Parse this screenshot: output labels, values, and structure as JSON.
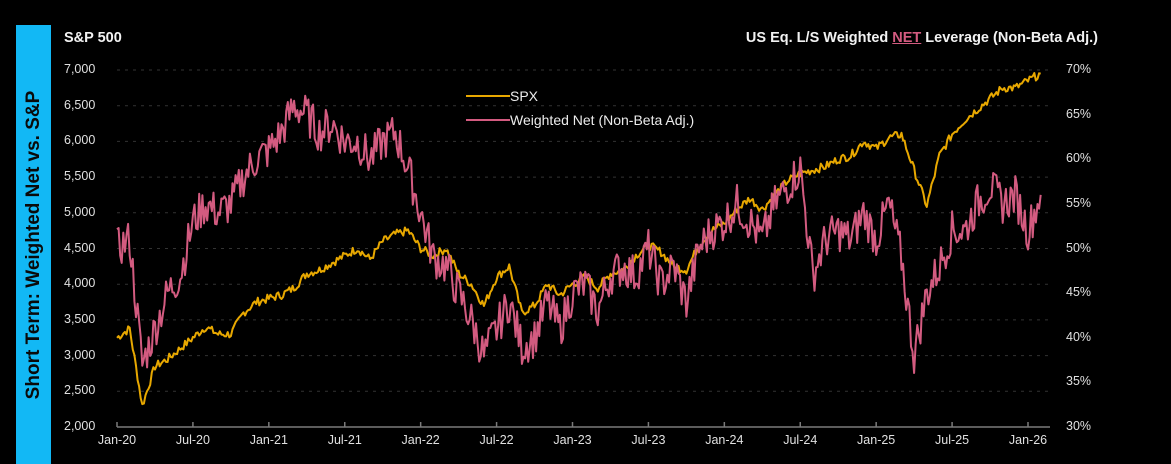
{
  "side_label": "Short Term: Weighted Net vs. S&P",
  "left_title": "S&P 500",
  "right_title": {
    "prefix": "US Eq. L/S Weighted ",
    "highlight": "NET",
    "suffix": " Leverage (Non-Beta Adj.)"
  },
  "colors": {
    "spx": "#e8a800",
    "net": "#d35b80",
    "banner": "#12b8f5"
  },
  "chart_data": {
    "type": "line",
    "title": "US Eq. L/S Weighted NET Leverage (Non-Beta Adj.)",
    "left_axis": {
      "label": "S&P 500",
      "ylim": [
        2000,
        7000
      ],
      "ticks": [
        "7,000",
        "6,500",
        "6,000",
        "5,500",
        "5,000",
        "4,500",
        "4,000",
        "3,500",
        "3,000",
        "2,500",
        "2,000"
      ]
    },
    "right_axis": {
      "ylim": [
        30,
        70
      ],
      "ticks": [
        "70%",
        "65%",
        "60%",
        "55%",
        "50%",
        "45%",
        "40%",
        "35%",
        "30%"
      ]
    },
    "x_ticks": [
      "Jan-20",
      "Jul-20",
      "Jan-21",
      "Jul-21",
      "Jan-22",
      "Jul-22",
      "Jan-23",
      "Jul-23",
      "Jan-24",
      "Jul-24",
      "Jan-25",
      "Jul-25",
      "Jan-26"
    ],
    "x_months_from_jan20": [
      0,
      1,
      2,
      3,
      4,
      5,
      6,
      7,
      8,
      9,
      10,
      11,
      12,
      13,
      14,
      15,
      16,
      17,
      18,
      19,
      20,
      21,
      22,
      23,
      24,
      25,
      26,
      27,
      28,
      29,
      30,
      31,
      32,
      33,
      34,
      35,
      36,
      37,
      38,
      39,
      40,
      41,
      42,
      43,
      44,
      45,
      46,
      47,
      48,
      49,
      50,
      51,
      52,
      53,
      54,
      55,
      56,
      57,
      58,
      59,
      60,
      61,
      62,
      63,
      64,
      65,
      66,
      67,
      68,
      69,
      70,
      71,
      72,
      73
    ],
    "grid": true,
    "legend_position": "top-center",
    "series": [
      {
        "name": "SPX",
        "axis": "left",
        "values": [
          3250,
          3380,
          2300,
          2850,
          2950,
          3100,
          3250,
          3400,
          3300,
          3300,
          3600,
          3750,
          3800,
          3850,
          3950,
          4150,
          4200,
          4300,
          4400,
          4500,
          4350,
          4600,
          4700,
          4750,
          4500,
          4400,
          4500,
          4150,
          4000,
          3700,
          4100,
          4250,
          3600,
          3700,
          4000,
          3850,
          4000,
          4100,
          3950,
          4150,
          4200,
          4400,
          4550,
          4450,
          4250,
          4200,
          4550,
          4750,
          4850,
          5050,
          5200,
          5050,
          5250,
          5450,
          5550,
          5600,
          5650,
          5750,
          5800,
          6000,
          5900,
          6050,
          6100,
          5600,
          5100,
          5800,
          6100,
          6300,
          6450,
          6600,
          6750,
          6750,
          6850,
          6950
        ]
      },
      {
        "name": "Weighted Net (Non-Beta Adj.)",
        "axis": "right",
        "values": [
          50,
          51,
          37,
          41,
          45,
          47,
          53,
          55,
          54,
          55,
          58,
          60,
          61,
          63,
          66,
          65,
          63,
          64,
          62,
          62,
          60,
          62,
          63,
          59,
          54,
          49,
          48,
          45,
          42,
          38,
          41,
          44,
          39,
          40,
          44,
          41,
          45,
          46,
          43,
          47,
          48,
          47,
          50,
          46,
          48,
          44,
          50,
          52,
          53,
          55,
          53,
          51,
          55,
          57,
          59,
          47,
          51,
          52,
          51,
          54,
          51,
          55,
          49,
          38,
          45,
          48,
          52,
          52,
          55,
          57,
          55,
          56,
          52,
          56
        ]
      }
    ]
  }
}
